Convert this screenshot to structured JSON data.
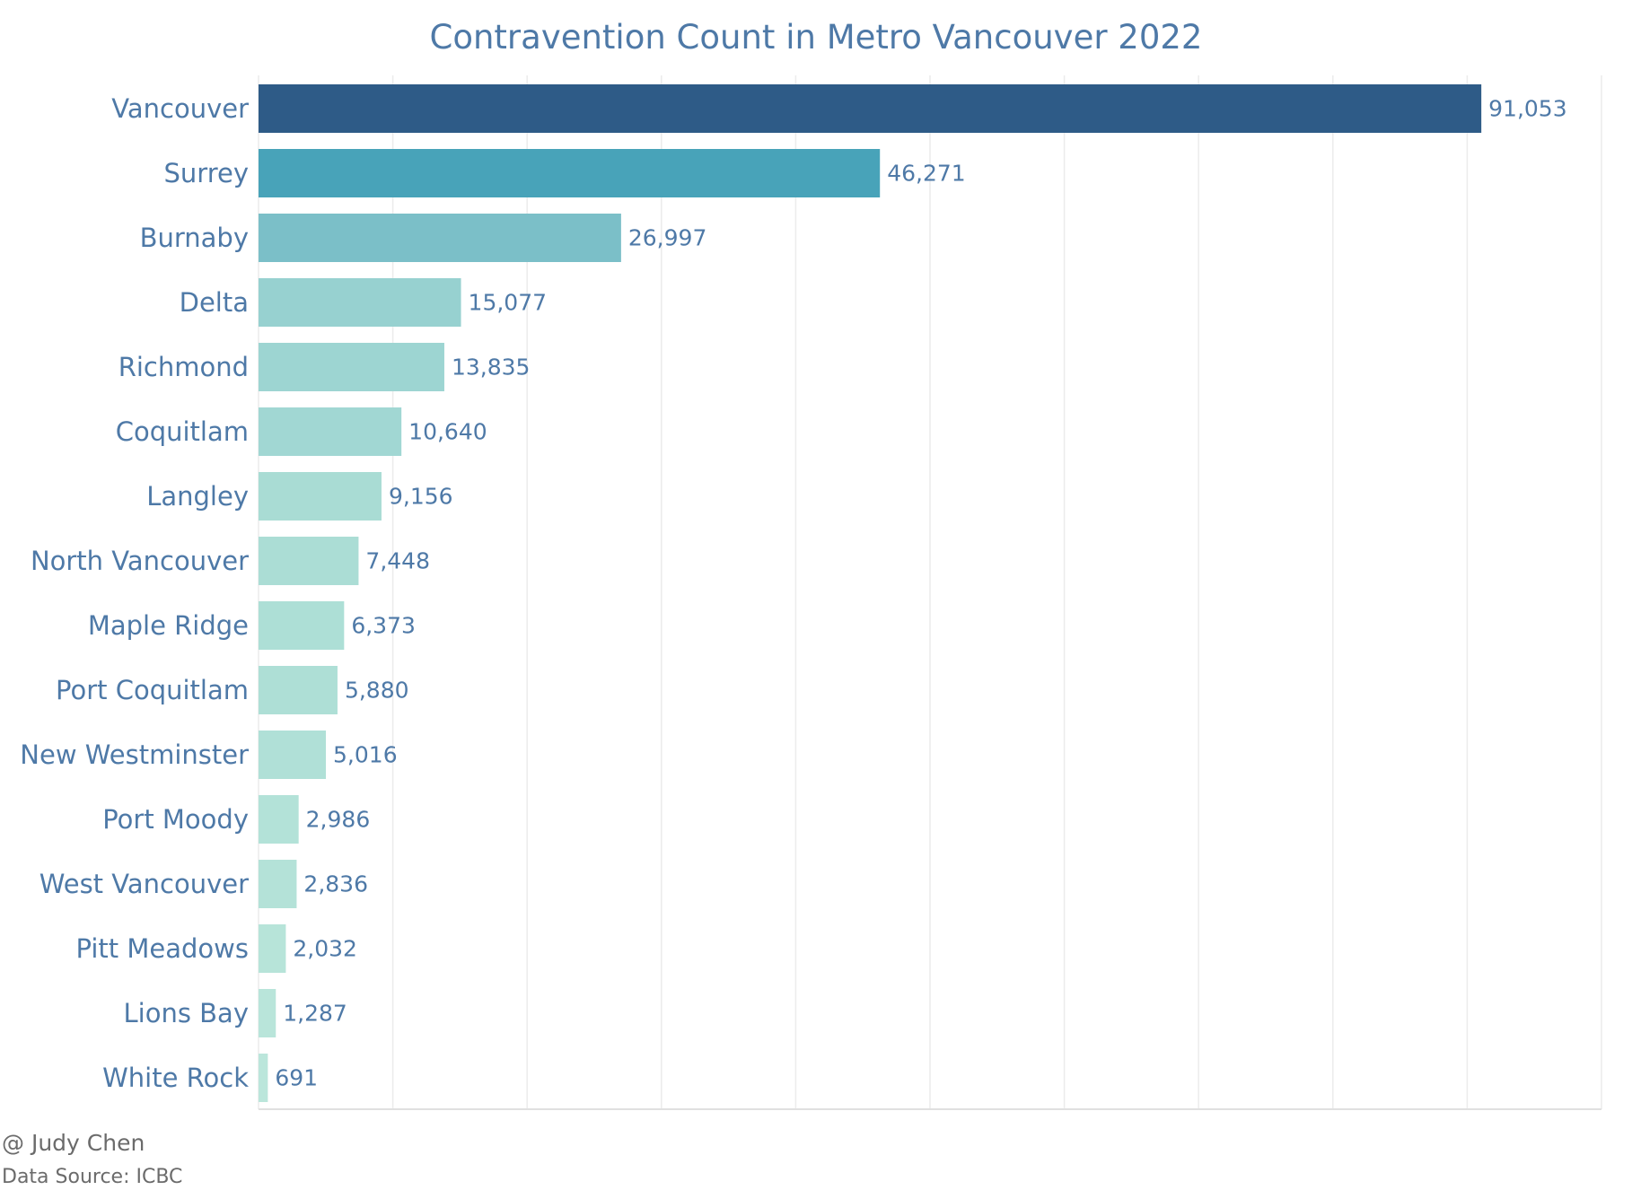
{
  "footer": {
    "author": "@ Judy Chen",
    "source": "Data Source: ICBC"
  },
  "chart_data": {
    "type": "bar",
    "orientation": "horizontal",
    "title": "Contravention Count in Metro Vancouver 2022",
    "xlabel": "",
    "ylabel": "",
    "categories": [
      "Vancouver",
      "Surrey",
      "Burnaby",
      "Delta",
      "Richmond",
      "Coquitlam",
      "Langley",
      "North Vancouver",
      "Maple Ridge",
      "Port Coquitlam",
      "New Westminster",
      "Port Moody",
      "West Vancouver",
      "Pitt Meadows",
      "Lions Bay",
      "White Rock"
    ],
    "values": [
      91053,
      46271,
      26997,
      15077,
      13835,
      10640,
      9156,
      7448,
      6373,
      5880,
      5016,
      2986,
      2836,
      2032,
      1287,
      691
    ],
    "value_labels": [
      "91,053",
      "46,271",
      "26,997",
      "15,077",
      "13,835",
      "10,640",
      "9,156",
      "7,448",
      "6,373",
      "5,880",
      "5,016",
      "2,986",
      "2,836",
      "2,032",
      "1,287",
      "691"
    ],
    "xlim": [
      0,
      100000
    ],
    "grid": true,
    "grid_step": 10000,
    "colors": [
      "#2e5b87",
      "#48a3b9",
      "#7bbfc8",
      "#97d1d0",
      "#9dd5d2",
      "#a1d7d3",
      "#a9dcd4",
      "#abddd5",
      "#addfd6",
      "#aedfd6",
      "#b0e0d7",
      "#b3e2d8",
      "#b4e2d8",
      "#b7e4d9",
      "#b9e5da",
      "#bbe6db"
    ],
    "legend": "none"
  }
}
